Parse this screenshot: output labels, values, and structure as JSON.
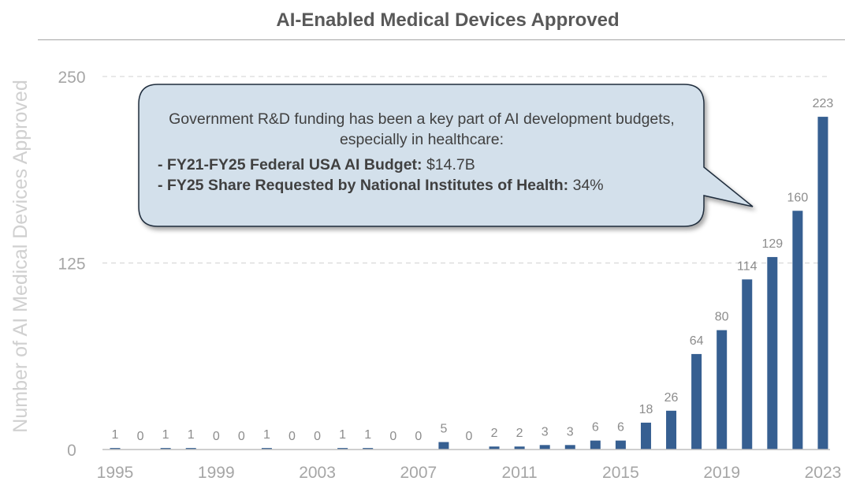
{
  "chart_data": {
    "type": "bar",
    "title": "AI-Enabled Medical Devices Approved",
    "ylabel": "Number of AI Medical Devices Approved",
    "xlabel": "",
    "ylim": [
      0,
      250
    ],
    "yticks": [
      0,
      125,
      250
    ],
    "xtick_labels": [
      "1995",
      "1999",
      "2003",
      "2007",
      "2011",
      "2015",
      "2019",
      "2023"
    ],
    "categories": [
      "1995",
      "1996",
      "1997",
      "1998",
      "1999",
      "2000",
      "2001",
      "2002",
      "2003",
      "2004",
      "2005",
      "2006",
      "2007",
      "2008",
      "2009",
      "2010",
      "2011",
      "2012",
      "2013",
      "2014",
      "2015",
      "2016",
      "2017",
      "2018",
      "2019",
      "2020",
      "2021",
      "2022",
      "2023"
    ],
    "values": [
      1,
      0,
      1,
      1,
      0,
      0,
      1,
      0,
      0,
      1,
      1,
      0,
      0,
      5,
      0,
      2,
      2,
      3,
      3,
      6,
      6,
      18,
      26,
      64,
      80,
      114,
      129,
      160,
      223
    ],
    "grid": true,
    "bar_color": "#365f91",
    "annotation": {
      "intro": "Government R&D funding has been a key part of AI development budgets, especially in healthcare:",
      "bullets": [
        {
          "label": "- FY21-FY25 Federal USA AI Budget:",
          "value": " $14.7B"
        },
        {
          "label": "- FY25 Share Requested by National Institutes of Health:",
          "value": " 34%"
        }
      ]
    }
  }
}
